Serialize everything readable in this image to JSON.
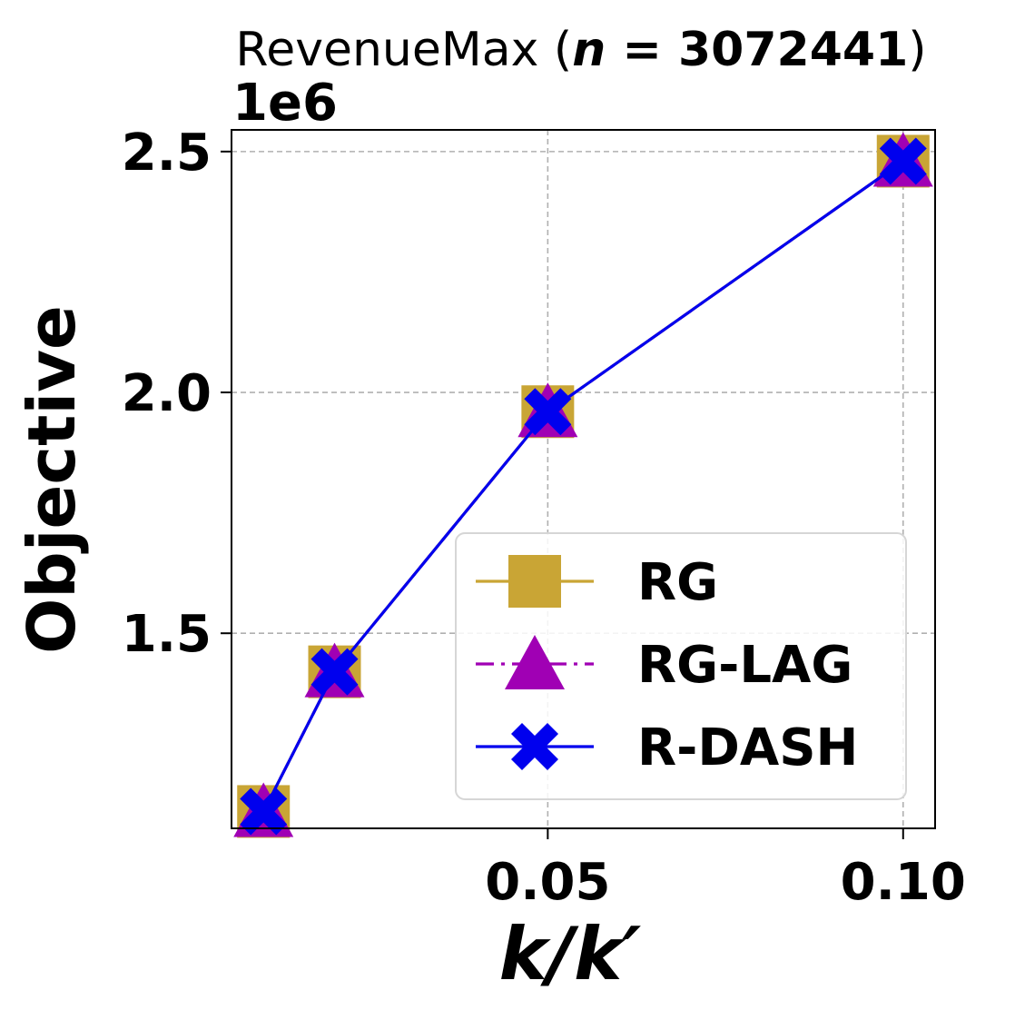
{
  "title": {
    "prefix": "RevenueMax (",
    "var": "n",
    "eq": " = ",
    "value": "3072441",
    "suffix": ")"
  },
  "axes": {
    "offset_label": "1e6",
    "xlabel": "k/k′",
    "ylabel": "Objective",
    "x_ticks": [
      {
        "value": 0.05,
        "label": "0.05"
      },
      {
        "value": 0.1,
        "label": "0.10"
      }
    ],
    "y_ticks": [
      {
        "value": 1.5,
        "label": "1.5"
      },
      {
        "value": 2.0,
        "label": "2.0"
      },
      {
        "value": 2.5,
        "label": "2.5"
      }
    ]
  },
  "chart_data": {
    "type": "line",
    "title": "RevenueMax (n = 3072441)",
    "xlabel": "k/k′",
    "ylabel": "Objective",
    "y_scale_factor": "1e6",
    "xlim": [
      0.0055,
      0.1045
    ],
    "ylim": [
      1.095,
      2.545
    ],
    "grid": true,
    "legend_position": "lower right",
    "x": [
      0.01,
      0.02,
      0.05,
      0.1
    ],
    "series": [
      {
        "name": "RG",
        "color": "#c9a535",
        "marker": "square",
        "linestyle": "solid",
        "values": [
          1.13,
          1.42,
          1.96,
          2.48
        ]
      },
      {
        "name": "RG-LAG",
        "color": "#a000b4",
        "marker": "triangle",
        "linestyle": "dashdot",
        "values": [
          1.13,
          1.42,
          1.96,
          2.48
        ]
      },
      {
        "name": "R-DASH",
        "color": "#0000ee",
        "marker": "x-filled",
        "linestyle": "solid",
        "values": [
          1.13,
          1.42,
          1.96,
          2.48
        ]
      }
    ]
  }
}
